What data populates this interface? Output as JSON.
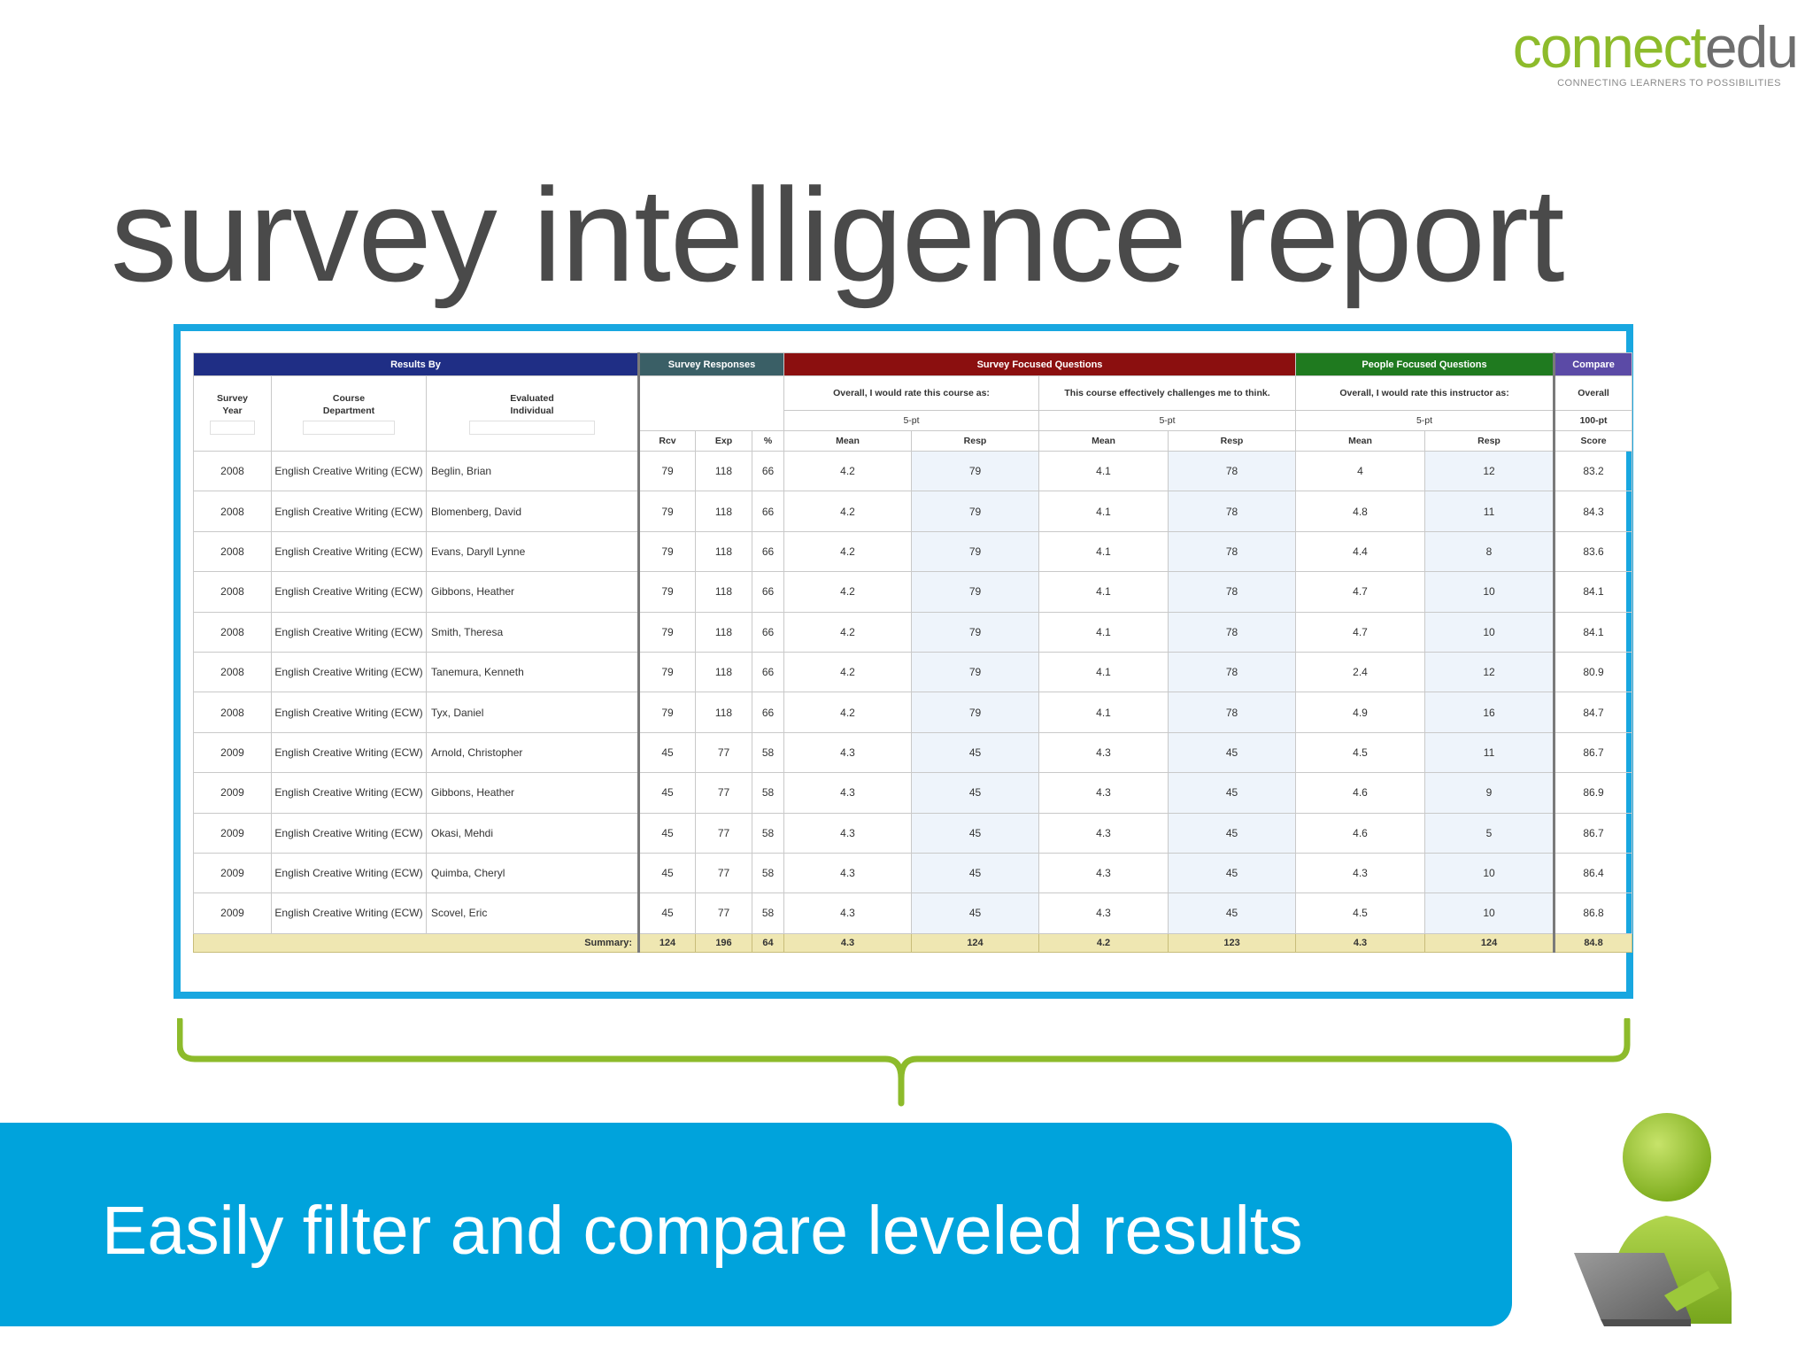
{
  "logo": {
    "part1": "connect",
    "part2": "edu",
    "tagline": "CONNECTING LEARNERS TO POSSIBILITIES"
  },
  "title": "survey intelligence report",
  "report": {
    "groups": {
      "results_by": "Results By",
      "survey_responses": "Survey Responses",
      "survey_focused": "Survey Focused Questions",
      "people_focused": "People Focused Questions",
      "compare": "Compare"
    },
    "filter_headers": {
      "year": "Survey Year",
      "dept": "Course Department",
      "individual": "Evaluated Individual"
    },
    "questions": {
      "q1": "Overall, I would rate this course as:",
      "q2": "This course effectively challenges me to think.",
      "q3": "Overall, I would rate this instructor as:",
      "q4": "Overall"
    },
    "scales": {
      "q1": "5-pt",
      "q2": "5-pt",
      "q3": "5-pt",
      "q4": "100-pt"
    },
    "col_labels": {
      "rcv": "Rcv",
      "exp": "Exp",
      "pct": "%",
      "mean": "Mean",
      "resp": "Resp",
      "score": "Score"
    },
    "rows": [
      {
        "year": "2008",
        "dept": "English Creative Writing (ECW)",
        "name": "Beglin, Brian",
        "rcv": "79",
        "exp": "118",
        "pct": "66",
        "m1": "4.2",
        "r1": "79",
        "m2": "4.1",
        "r2": "78",
        "m3": "4",
        "r3": "12",
        "score": "83.2"
      },
      {
        "year": "2008",
        "dept": "English Creative Writing (ECW)",
        "name": "Blomenberg, David",
        "rcv": "79",
        "exp": "118",
        "pct": "66",
        "m1": "4.2",
        "r1": "79",
        "m2": "4.1",
        "r2": "78",
        "m3": "4.8",
        "r3": "11",
        "score": "84.3"
      },
      {
        "year": "2008",
        "dept": "English Creative Writing (ECW)",
        "name": "Evans, Daryll Lynne",
        "rcv": "79",
        "exp": "118",
        "pct": "66",
        "m1": "4.2",
        "r1": "79",
        "m2": "4.1",
        "r2": "78",
        "m3": "4.4",
        "r3": "8",
        "score": "83.6"
      },
      {
        "year": "2008",
        "dept": "English Creative Writing (ECW)",
        "name": "Gibbons, Heather",
        "rcv": "79",
        "exp": "118",
        "pct": "66",
        "m1": "4.2",
        "r1": "79",
        "m2": "4.1",
        "r2": "78",
        "m3": "4.7",
        "r3": "10",
        "score": "84.1"
      },
      {
        "year": "2008",
        "dept": "English Creative Writing (ECW)",
        "name": "Smith, Theresa",
        "rcv": "79",
        "exp": "118",
        "pct": "66",
        "m1": "4.2",
        "r1": "79",
        "m2": "4.1",
        "r2": "78",
        "m3": "4.7",
        "r3": "10",
        "score": "84.1"
      },
      {
        "year": "2008",
        "dept": "English Creative Writing (ECW)",
        "name": "Tanemura, Kenneth",
        "rcv": "79",
        "exp": "118",
        "pct": "66",
        "m1": "4.2",
        "r1": "79",
        "m2": "4.1",
        "r2": "78",
        "m3": "2.4",
        "r3": "12",
        "score": "80.9"
      },
      {
        "year": "2008",
        "dept": "English Creative Writing (ECW)",
        "name": "Tyx, Daniel",
        "rcv": "79",
        "exp": "118",
        "pct": "66",
        "m1": "4.2",
        "r1": "79",
        "m2": "4.1",
        "r2": "78",
        "m3": "4.9",
        "r3": "16",
        "score": "84.7"
      },
      {
        "year": "2009",
        "dept": "English Creative Writing (ECW)",
        "name": "Arnold, Christopher",
        "rcv": "45",
        "exp": "77",
        "pct": "58",
        "m1": "4.3",
        "r1": "45",
        "m2": "4.3",
        "r2": "45",
        "m3": "4.5",
        "r3": "11",
        "score": "86.7"
      },
      {
        "year": "2009",
        "dept": "English Creative Writing (ECW)",
        "name": "Gibbons, Heather",
        "rcv": "45",
        "exp": "77",
        "pct": "58",
        "m1": "4.3",
        "r1": "45",
        "m2": "4.3",
        "r2": "45",
        "m3": "4.6",
        "r3": "9",
        "score": "86.9"
      },
      {
        "year": "2009",
        "dept": "English Creative Writing (ECW)",
        "name": "Okasi, Mehdi",
        "rcv": "45",
        "exp": "77",
        "pct": "58",
        "m1": "4.3",
        "r1": "45",
        "m2": "4.3",
        "r2": "45",
        "m3": "4.6",
        "r3": "5",
        "score": "86.7"
      },
      {
        "year": "2009",
        "dept": "English Creative Writing (ECW)",
        "name": "Quimba, Cheryl",
        "rcv": "45",
        "exp": "77",
        "pct": "58",
        "m1": "4.3",
        "r1": "45",
        "m2": "4.3",
        "r2": "45",
        "m3": "4.3",
        "r3": "10",
        "score": "86.4"
      },
      {
        "year": "2009",
        "dept": "English Creative Writing (ECW)",
        "name": "Scovel, Eric",
        "rcv": "45",
        "exp": "77",
        "pct": "58",
        "m1": "4.3",
        "r1": "45",
        "m2": "4.3",
        "r2": "45",
        "m3": "4.5",
        "r3": "10",
        "score": "86.8"
      }
    ],
    "summary": {
      "label": "Summary:",
      "rcv": "124",
      "exp": "196",
      "pct": "64",
      "m1": "4.3",
      "r1": "124",
      "m2": "4.2",
      "r2": "123",
      "m3": "4.3",
      "r3": "124",
      "score": "84.8"
    }
  },
  "banner": {
    "text": "Easily filter and compare leveled results"
  },
  "colors": {
    "accent_blue": "#00a3dc",
    "frame_blue": "#18a7e0",
    "brand_green": "#8dbb2b"
  }
}
